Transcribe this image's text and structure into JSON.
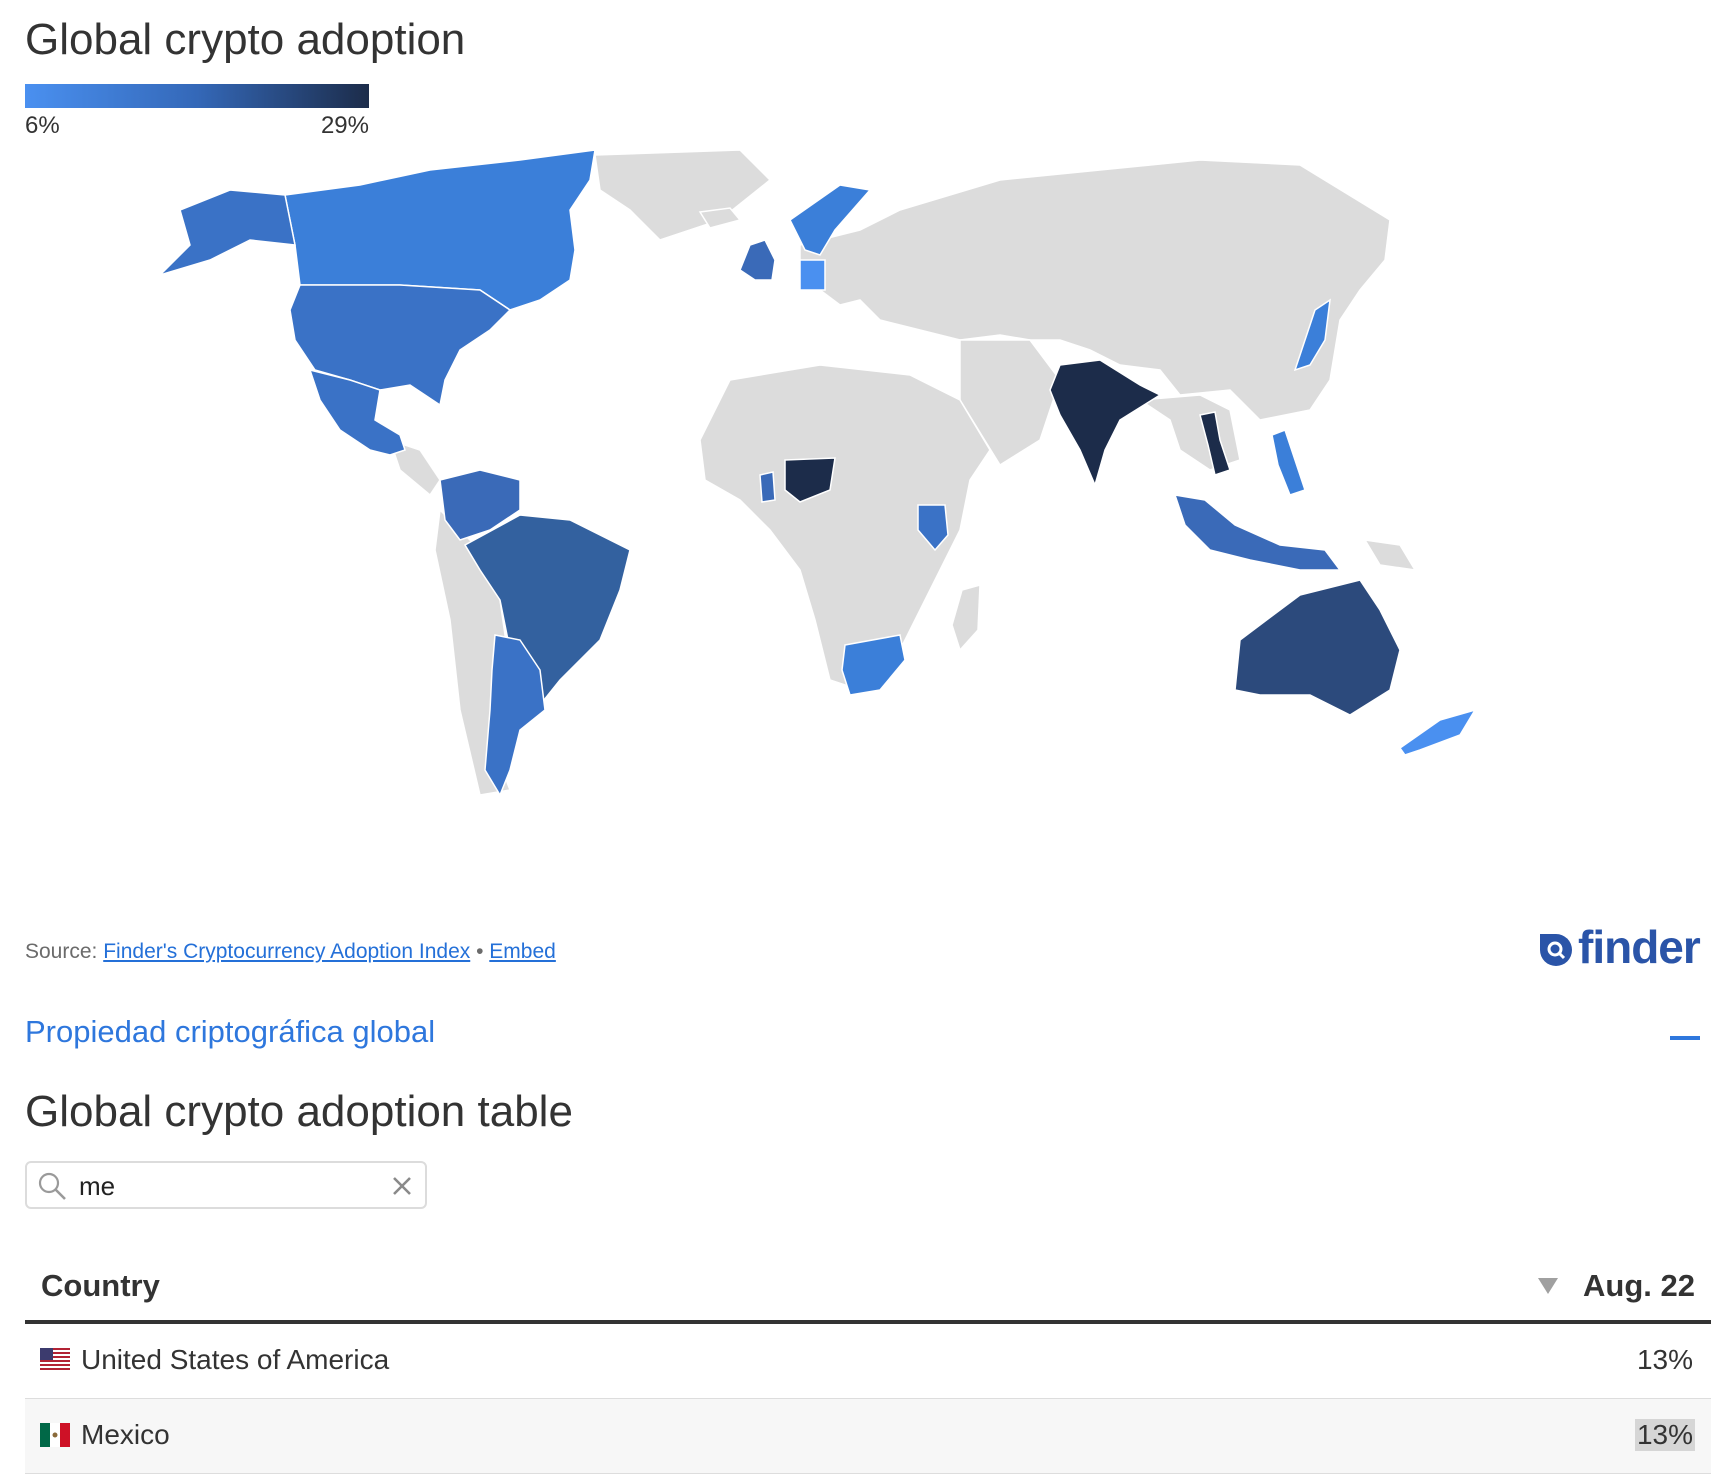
{
  "chart": {
    "title": "Global crypto adoption",
    "legend": {
      "min_label": "6%",
      "max_label": "29%",
      "color_low": "#4a90f0",
      "color_mid": "#3468b8",
      "color_high": "#1c2c4a"
    }
  },
  "source": {
    "prefix": "Source:",
    "link_text": "Finder's Cryptocurrency Adoption Index",
    "separator": "•",
    "embed_text": "Embed"
  },
  "brand": {
    "name": "finder"
  },
  "section": {
    "label": "Propiedad criptográfica global"
  },
  "table": {
    "title": "Global crypto adoption table",
    "search_value": "me",
    "columns": {
      "country": "Country",
      "value": "Aug. 22"
    },
    "rows": [
      {
        "country": "United States of America",
        "value": "13%",
        "flag": "us-flag-icon"
      },
      {
        "country": "Mexico",
        "value": "13%",
        "flag": "mx-flag-icon"
      }
    ]
  },
  "colors": {
    "land_default": "#dcdcdc",
    "accent": "#2e77dd",
    "low": "#4a90f0",
    "mid": "#3468b8",
    "high": "#1c2c4a"
  }
}
